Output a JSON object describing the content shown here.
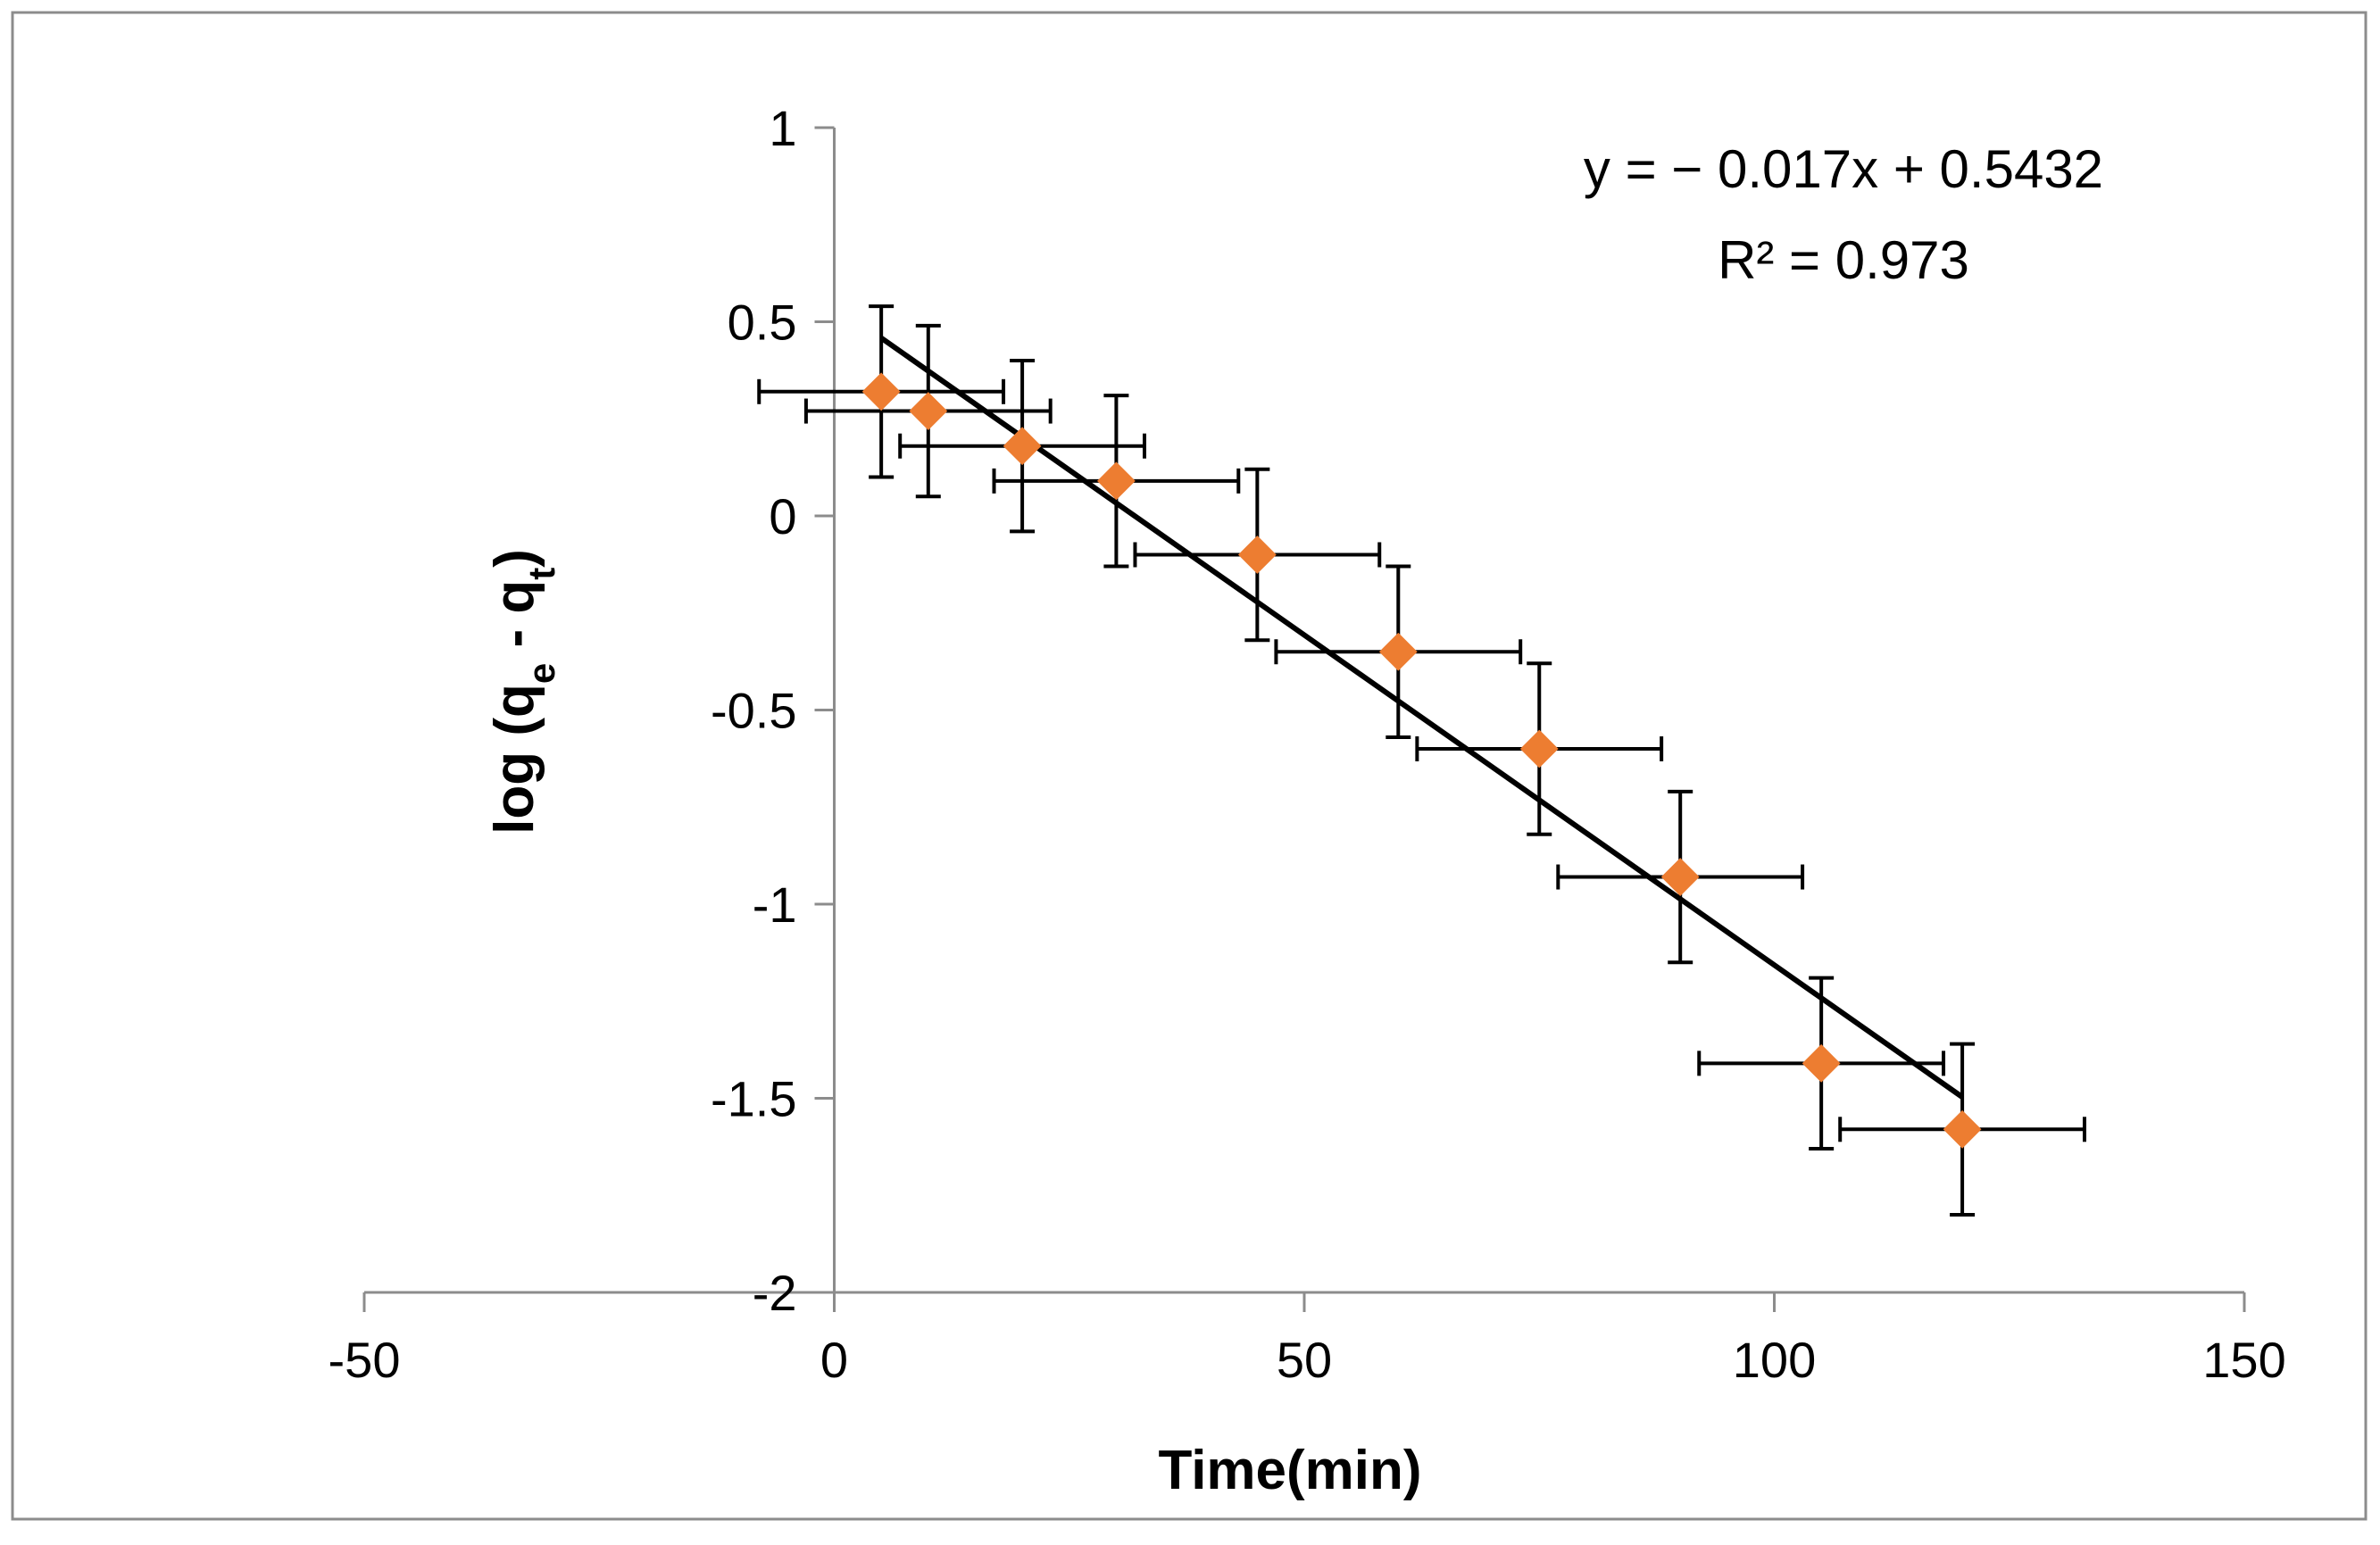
{
  "chart_data": {
    "type": "scatter",
    "title": "",
    "xlabel": "Time(min)",
    "ylabel": {
      "main": "log (q",
      "sub1": "e",
      "mid": " - q",
      "sub2": "t",
      "end": ")"
    },
    "xlim": [
      -50,
      150
    ],
    "ylim": [
      -2,
      1
    ],
    "xticks": [
      -50,
      0,
      50,
      100,
      150
    ],
    "yticks": [
      -2,
      -1.5,
      -1,
      -0.5,
      0,
      0.5,
      1
    ],
    "xtick_labels": [
      "-50",
      "0",
      "50",
      "100",
      "150"
    ],
    "ytick_labels": [
      "-2",
      "-1.5",
      "-1",
      "-0.5",
      "0",
      "0.5",
      "1"
    ],
    "grid": false,
    "series": [
      {
        "name": "log (qe - qt)",
        "marker": "diamond",
        "color": "#ED7D31",
        "x": [
          5,
          10,
          20,
          30,
          45,
          60,
          75,
          90,
          105,
          120
        ],
        "y": [
          0.32,
          0.27,
          0.18,
          0.09,
          -0.1,
          -0.35,
          -0.6,
          -0.93,
          -1.41,
          -1.58
        ],
        "x_error": 13,
        "y_error": 0.22
      }
    ],
    "trendline": {
      "type": "linear",
      "slope": -0.017,
      "intercept": 0.5432,
      "x_range": [
        5,
        120
      ],
      "color": "#000000",
      "equation": "y = − 0.017x + 0.5432",
      "r_squared": "R² = 0.973"
    }
  }
}
